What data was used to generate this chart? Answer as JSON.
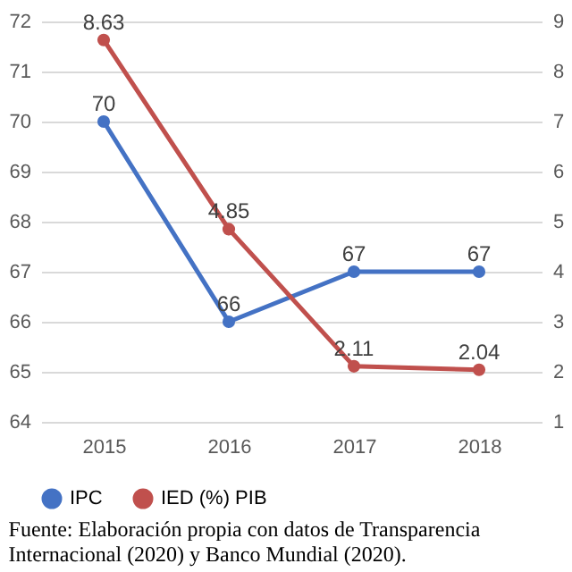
{
  "chart_data": {
    "type": "line",
    "categories": [
      "2015",
      "2016",
      "2017",
      "2018"
    ],
    "series": [
      {
        "name": "IPC",
        "color": "#4472c4",
        "values": [
          70,
          66,
          67,
          67
        ]
      },
      {
        "name": "IED (%) PIB",
        "color": "#c0504d",
        "values": [
          8.63,
          4.85,
          2.11,
          2.04
        ],
        "axis": "y2"
      }
    ],
    "ylim": [
      64,
      72
    ],
    "yticks": [
      64,
      65,
      66,
      67,
      68,
      69,
      70,
      71,
      72
    ],
    "y2lim": [
      1,
      9
    ],
    "y2ticks": [
      1,
      2,
      3,
      4,
      5,
      6,
      7,
      8,
      9
    ],
    "grid": "y",
    "legend": "bottom",
    "marker": "circle",
    "data_labels": true,
    "annotations": [
      "Fuente: Elaboración propia con datos de Transparencia Internacional (2020) y Banco Mundial (2020)."
    ]
  }
}
